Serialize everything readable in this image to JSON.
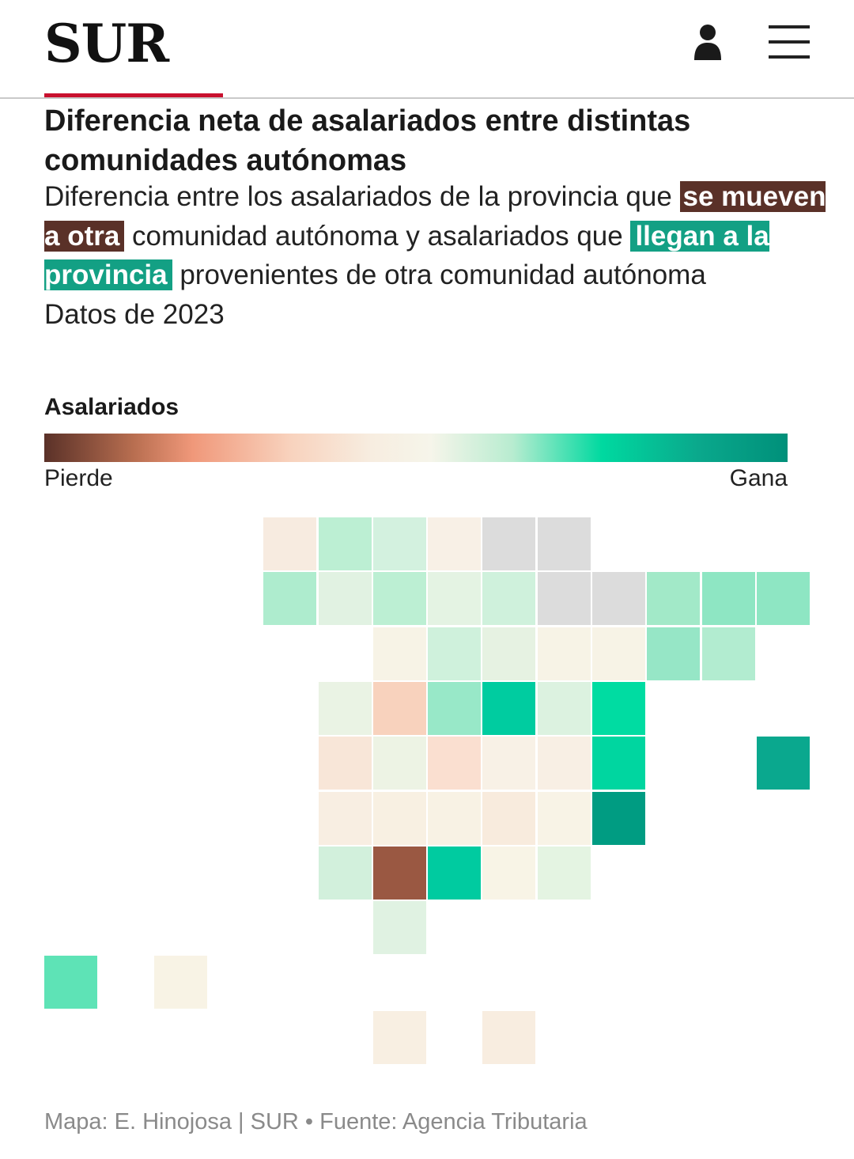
{
  "header": {
    "logo": "SUR",
    "brand_color": "#c8102e"
  },
  "title": "Diferencia neta de asalariados entre distintas comunidades autónomas",
  "subtitle": {
    "part1": "Diferencia entre los asalariados de la provincia que ",
    "highlight_out": "se mueven a otra",
    "part2": " comunidad autónoma y asalariados que ",
    "highlight_in": "llegan a la provincia",
    "part3": " provenientes de otra comunidad autónoma",
    "date": "Datos de 2023"
  },
  "legend": {
    "title": "Asalariados",
    "left_label": "Pierde",
    "right_label": "Gana"
  },
  "source": "Mapa: E. Hinojosa | SUR • Fuente: Agencia Tributaria",
  "tile_map": [
    {
      "row": 0,
      "col": 4,
      "color": "#f7ebe0"
    },
    {
      "row": 0,
      "col": 5,
      "color": "#bcefd3"
    },
    {
      "row": 0,
      "col": 6,
      "color": "#d3f1df"
    },
    {
      "row": 0,
      "col": 7,
      "color": "#f8f0e6"
    },
    {
      "row": 0,
      "col": 8,
      "color": "#dcdcdc"
    },
    {
      "row": 0,
      "col": 9,
      "color": "#dcdcdc"
    },
    {
      "row": 1,
      "col": 4,
      "color": "#aeecce"
    },
    {
      "row": 1,
      "col": 5,
      "color": "#e1f2e2"
    },
    {
      "row": 1,
      "col": 6,
      "color": "#bcefd3"
    },
    {
      "row": 1,
      "col": 7,
      "color": "#e4f3e3"
    },
    {
      "row": 1,
      "col": 8,
      "color": "#cff1dc"
    },
    {
      "row": 1,
      "col": 9,
      "color": "#dcdcdc"
    },
    {
      "row": 1,
      "col": 10,
      "color": "#dcdcdc"
    },
    {
      "row": 1,
      "col": 11,
      "color": "#a2e9c8"
    },
    {
      "row": 1,
      "col": 12,
      "color": "#8ee6c3"
    },
    {
      "row": 1,
      "col": 13,
      "color": "#8ee6c3"
    },
    {
      "row": 2,
      "col": 6,
      "color": "#f7f3e6"
    },
    {
      "row": 2,
      "col": 7,
      "color": "#cff1dc"
    },
    {
      "row": 2,
      "col": 8,
      "color": "#e6f2e2"
    },
    {
      "row": 2,
      "col": 9,
      "color": "#f7f3e6"
    },
    {
      "row": 2,
      "col": 10,
      "color": "#f7f3e6"
    },
    {
      "row": 2,
      "col": 11,
      "color": "#96e6c6"
    },
    {
      "row": 2,
      "col": 12,
      "color": "#b2ecd0"
    },
    {
      "row": 3,
      "col": 5,
      "color": "#eaf3e4"
    },
    {
      "row": 3,
      "col": 6,
      "color": "#f8d2bd"
    },
    {
      "row": 3,
      "col": 7,
      "color": "#98e8c8"
    },
    {
      "row": 3,
      "col": 8,
      "color": "#00cca0"
    },
    {
      "row": 3,
      "col": 9,
      "color": "#dcf2e0"
    },
    {
      "row": 3,
      "col": 10,
      "color": "#00dca2"
    },
    {
      "row": 4,
      "col": 5,
      "color": "#f8e6d8"
    },
    {
      "row": 4,
      "col": 6,
      "color": "#edf3e4"
    },
    {
      "row": 4,
      "col": 7,
      "color": "#fadfd0"
    },
    {
      "row": 4,
      "col": 8,
      "color": "#f8f1e6"
    },
    {
      "row": 4,
      "col": 9,
      "color": "#f8efe4"
    },
    {
      "row": 4,
      "col": 10,
      "color": "#00d6a0"
    },
    {
      "row": 4,
      "col": 13,
      "color": "#0aa88e"
    },
    {
      "row": 5,
      "col": 5,
      "color": "#f8eee2"
    },
    {
      "row": 5,
      "col": 6,
      "color": "#f8f0e2"
    },
    {
      "row": 5,
      "col": 7,
      "color": "#f8f2e4"
    },
    {
      "row": 5,
      "col": 8,
      "color": "#f8ebdd"
    },
    {
      "row": 5,
      "col": 9,
      "color": "#f8f3e6"
    },
    {
      "row": 5,
      "col": 10,
      "color": "#009c82"
    },
    {
      "row": 6,
      "col": 5,
      "color": "#d2f0dc"
    },
    {
      "row": 6,
      "col": 6,
      "color": "#9a5842"
    },
    {
      "row": 6,
      "col": 7,
      "color": "#00cba0"
    },
    {
      "row": 6,
      "col": 8,
      "color": "#f8f4e6"
    },
    {
      "row": 6,
      "col": 9,
      "color": "#e4f4e2"
    },
    {
      "row": 7,
      "col": 6,
      "color": "#e0f2e2"
    },
    {
      "row": 8,
      "col": 0,
      "color": "#5ee3b6"
    },
    {
      "row": 8,
      "col": 2,
      "color": "#f8f3e5"
    },
    {
      "row": 9,
      "col": 6,
      "color": "#f8efe2"
    },
    {
      "row": 9,
      "col": 8,
      "color": "#f8ede0"
    }
  ]
}
